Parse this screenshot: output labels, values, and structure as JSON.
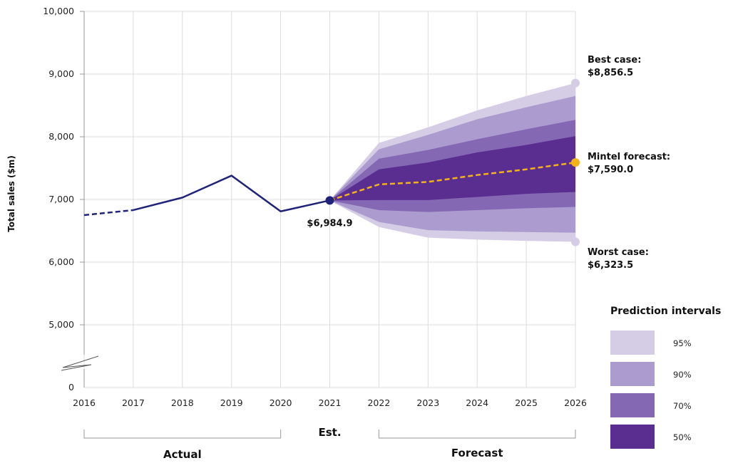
{
  "chart_data": {
    "type": "line",
    "title": "",
    "xlabel": "",
    "ylabel": "Total sales ($m)",
    "x": [
      2016,
      2017,
      2018,
      2019,
      2020,
      2021,
      2022,
      2023,
      2024,
      2025,
      2026
    ],
    "xlim": [
      2016,
      2026
    ],
    "ylim": [
      5000,
      10000
    ],
    "y_ticks": [
      "0",
      "5,000",
      "6,000",
      "7,000",
      "8,000",
      "9,000",
      "10,000"
    ],
    "y_axis_break": true,
    "grid": true,
    "actual": {
      "x": [
        2016,
        2017,
        2018,
        2019,
        2020,
        2021
      ],
      "values": [
        6750,
        6830,
        7030,
        7380,
        6810,
        6984.9
      ]
    },
    "forecast": {
      "x": [
        2021,
        2022,
        2023,
        2024,
        2025,
        2026
      ],
      "values": [
        6984.9,
        7240,
        7280,
        7390,
        7480,
        7590.0
      ]
    },
    "intervals": [
      {
        "name": "95%",
        "color": "#d5cce5",
        "lower": [
          6984.9,
          6560,
          6390,
          6360,
          6340,
          6323.5
        ],
        "upper": [
          6984.9,
          7900,
          8150,
          8420,
          8650,
          8856.5
        ]
      },
      {
        "name": "90%",
        "color": "#ac9bcf",
        "lower": [
          6984.9,
          6640,
          6510,
          6490,
          6480,
          6470
        ],
        "upper": [
          6984.9,
          7800,
          8030,
          8280,
          8470,
          8650
        ]
      },
      {
        "name": "70%",
        "color": "#8468b4",
        "lower": [
          6984.9,
          6830,
          6800,
          6830,
          6860,
          6880
        ],
        "upper": [
          6984.9,
          7650,
          7790,
          7960,
          8120,
          8270
        ]
      },
      {
        "name": "50%",
        "color": "#5a2d91",
        "lower": [
          6984.9,
          6990,
          6990,
          7040,
          7090,
          7120
        ],
        "upper": [
          6984.9,
          7480,
          7590,
          7750,
          7870,
          8010
        ]
      }
    ],
    "annotations": {
      "current": {
        "x": 2021,
        "y": 6984.9,
        "label": "$6,984.9"
      },
      "best": {
        "x": 2026,
        "y": 8856.5,
        "line1": "Best case:",
        "line2": "$8,856.5"
      },
      "mintel": {
        "x": 2026,
        "y": 7590.0,
        "line1": "Mintel forecast:",
        "line2": "$7,590.0"
      },
      "worst": {
        "x": 2026,
        "y": 6323.5,
        "line1": "Worst case:",
        "line2": "$6,323.5"
      }
    },
    "periods": {
      "actual": "Actual",
      "est": "Est.",
      "forecast": "Forecast"
    },
    "legend": {
      "title": "Prediction intervals",
      "position": "bottom-right"
    },
    "colors": {
      "actual_line": "#1f2379",
      "forecast_line": "#f3b219",
      "grid": "#dcdcdc"
    }
  }
}
